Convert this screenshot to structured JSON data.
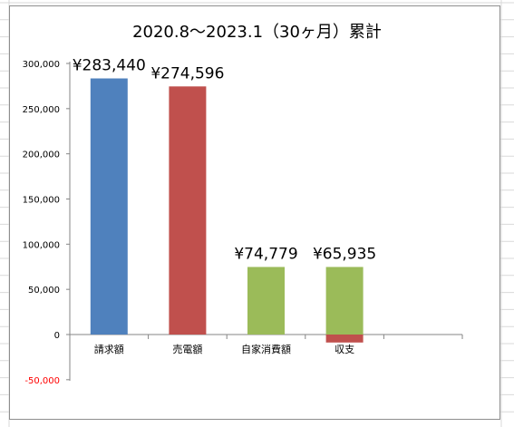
{
  "chart_data": {
    "type": "bar",
    "title": "2020.8〜2023.1（30ヶ月）累計",
    "xlabel": "",
    "ylabel": "",
    "categories": [
      "請求額",
      "売電額",
      "自家消費額",
      "収支"
    ],
    "values": [
      283440,
      274596,
      74779,
      65935
    ],
    "stacked_segments": {
      "収支": [
        {
          "value": 74779,
          "color": "#9bbb59"
        },
        {
          "value": -8844,
          "color": "#c0504d"
        }
      ]
    },
    "data_labels": [
      "¥283,440",
      "¥274,596",
      "¥74,779",
      "¥65,935"
    ],
    "bar_colors": [
      "#4f81bd",
      "#c0504d",
      "#9bbb59",
      "#9bbb59"
    ],
    "negative_color": "#ff0000",
    "ylim": [
      -50000,
      300000
    ],
    "yticks": [
      300000,
      250000,
      200000,
      150000,
      100000,
      50000,
      0,
      -50000
    ],
    "ytick_labels": [
      "300,000",
      "250,000",
      "200,000",
      "150,000",
      "100,000",
      "50,000",
      "0",
      "-50,000"
    ],
    "grid": false,
    "legend": "none"
  }
}
